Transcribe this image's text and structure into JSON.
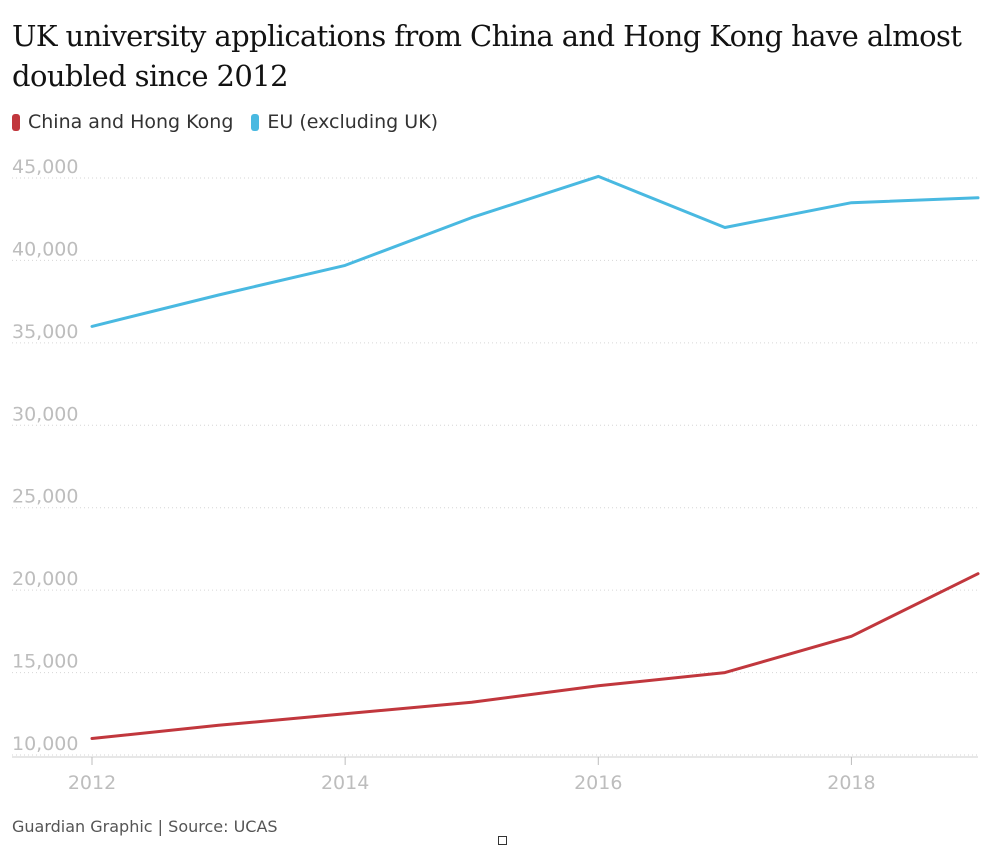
{
  "header": {
    "title": "UK university applications from China and Hong Kong have almost doubled since 2012"
  },
  "footer": {
    "text": "Guardian Graphic | Source: UCAS"
  },
  "chart_data": {
    "type": "line",
    "title": "UK university applications from China and Hong Kong have almost doubled since 2012",
    "xlabel": "",
    "ylabel": "",
    "x": [
      2012,
      2013,
      2014,
      2015,
      2016,
      2017,
      2018,
      2019
    ],
    "x_ticks": [
      "2012",
      "2014",
      "2016",
      "2018"
    ],
    "y_ticks": [
      "10,000",
      "15,000",
      "20,000",
      "25,000",
      "30,000",
      "35,000",
      "40,000",
      "45,000"
    ],
    "ylim": [
      9000,
      46000
    ],
    "grid": true,
    "legend_position": "top-left",
    "series": [
      {
        "name": "China and Hong Kong",
        "color": "#c1373d",
        "values": [
          11000,
          11800,
          12500,
          13200,
          14200,
          15000,
          17200,
          21000
        ]
      },
      {
        "name": "EU (excluding UK)",
        "color": "#49b9e1",
        "values": [
          36000,
          37900,
          39700,
          42600,
          45100,
          42000,
          43500,
          43800
        ]
      }
    ]
  }
}
